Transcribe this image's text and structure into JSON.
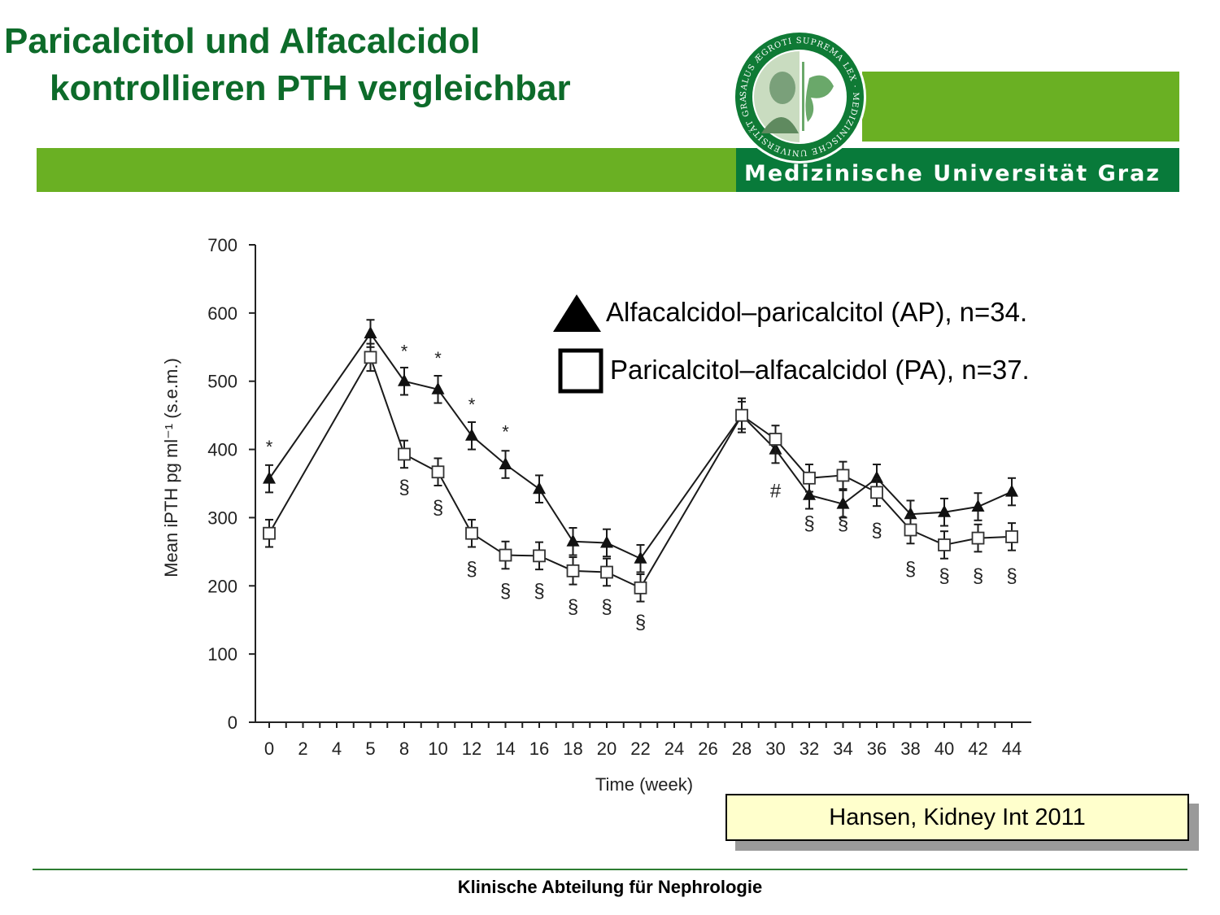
{
  "header": {
    "title_line1": "Paricalcitol und Alfacalcidol",
    "title_line2": "kontrollieren PTH vergleichbar",
    "university": "Medizinische Universität Graz",
    "seal_text": "SALUS ÆGROTI SUPREMA LEX · MEDIZINISCHE UNIVERSITÄT GRAZ",
    "colors": {
      "title": "#0d6b2a",
      "band_light": "#6ab023",
      "band_dark": "#087a3a"
    }
  },
  "legend": {
    "series_ap": "Alfacalcidol–paricalcitol (AP), n=34.",
    "series_pa": "Paricalcitol–alfacalcidol (PA), n=37."
  },
  "citation": "Hansen, Kidney Int 2011",
  "footer": "Klinische Abteilung für Nephrologie",
  "chart_data": {
    "type": "line",
    "xlabel": "Time (week)",
    "ylabel": "Mean iPTH pg ml⁻¹ (s.e.m.)",
    "ylim": [
      0,
      700
    ],
    "yticks": [
      0,
      100,
      200,
      300,
      400,
      500,
      600,
      700
    ],
    "categories": [
      "0",
      "2",
      "4",
      "5",
      "8",
      "10",
      "12",
      "14",
      "16",
      "18",
      "20",
      "22",
      "24",
      "26",
      "28",
      "30",
      "32",
      "34",
      "36",
      "38",
      "40",
      "42",
      "44"
    ],
    "series": [
      {
        "name": "Alfacalcidol–paricalcitol (AP), n=34.",
        "marker": "filled-triangle",
        "points": [
          {
            "x": "0",
            "y": 357,
            "err": 20
          },
          {
            "x": "5",
            "y": 570,
            "err": 20
          },
          {
            "x": "8",
            "y": 500,
            "err": 20
          },
          {
            "x": "10",
            "y": 488,
            "err": 20
          },
          {
            "x": "12",
            "y": 420,
            "err": 20
          },
          {
            "x": "14",
            "y": 378,
            "err": 20
          },
          {
            "x": "16",
            "y": 342,
            "err": 20
          },
          {
            "x": "18",
            "y": 265,
            "err": 20
          },
          {
            "x": "20",
            "y": 263,
            "err": 20
          },
          {
            "x": "22",
            "y": 240,
            "err": 20
          },
          {
            "x": "28",
            "y": 450,
            "err": 25
          },
          {
            "x": "30",
            "y": 400,
            "err": 20
          },
          {
            "x": "32",
            "y": 333,
            "err": 20
          },
          {
            "x": "34",
            "y": 320,
            "err": 20
          },
          {
            "x": "36",
            "y": 358,
            "err": 20
          },
          {
            "x": "38",
            "y": 305,
            "err": 20
          },
          {
            "x": "40",
            "y": 308,
            "err": 20
          },
          {
            "x": "42",
            "y": 316,
            "err": 20
          },
          {
            "x": "44",
            "y": 338,
            "err": 20
          }
        ]
      },
      {
        "name": "Paricalcitol–alfacalcidol (PA), n=37.",
        "marker": "open-square",
        "points": [
          {
            "x": "0",
            "y": 277,
            "err": 20
          },
          {
            "x": "5",
            "y": 535,
            "err": 20
          },
          {
            "x": "8",
            "y": 393,
            "err": 20
          },
          {
            "x": "10",
            "y": 367,
            "err": 20
          },
          {
            "x": "12",
            "y": 277,
            "err": 20
          },
          {
            "x": "14",
            "y": 245,
            "err": 20
          },
          {
            "x": "16",
            "y": 244,
            "err": 20
          },
          {
            "x": "18",
            "y": 222,
            "err": 20
          },
          {
            "x": "20",
            "y": 220,
            "err": 20
          },
          {
            "x": "22",
            "y": 197,
            "err": 20
          },
          {
            "x": "28",
            "y": 450,
            "err": 20
          },
          {
            "x": "30",
            "y": 415,
            "err": 20
          },
          {
            "x": "32",
            "y": 358,
            "err": 20
          },
          {
            "x": "34",
            "y": 362,
            "err": 20
          },
          {
            "x": "36",
            "y": 337,
            "err": 20
          },
          {
            "x": "38",
            "y": 282,
            "err": 20
          },
          {
            "x": "40",
            "y": 260,
            "err": 20
          },
          {
            "x": "42",
            "y": 270,
            "err": 20
          },
          {
            "x": "44",
            "y": 272,
            "err": 20
          }
        ]
      }
    ],
    "annotations": [
      {
        "x": "0",
        "y": 395,
        "text": "*"
      },
      {
        "x": "8",
        "y": 535,
        "text": "*"
      },
      {
        "x": "10",
        "y": 525,
        "text": "*"
      },
      {
        "x": "12",
        "y": 457,
        "text": "*"
      },
      {
        "x": "14",
        "y": 417,
        "text": "*"
      },
      {
        "x": "8",
        "y": 335,
        "text": "§"
      },
      {
        "x": "10",
        "y": 305,
        "text": "§"
      },
      {
        "x": "12",
        "y": 215,
        "text": "§"
      },
      {
        "x": "14",
        "y": 183,
        "text": "§"
      },
      {
        "x": "16",
        "y": 183,
        "text": "§"
      },
      {
        "x": "18",
        "y": 160,
        "text": "§"
      },
      {
        "x": "20",
        "y": 160,
        "text": "§"
      },
      {
        "x": "22",
        "y": 137,
        "text": "§"
      },
      {
        "x": "30",
        "y": 330,
        "text": "#"
      },
      {
        "x": "32",
        "y": 282,
        "text": "§"
      },
      {
        "x": "34",
        "y": 282,
        "text": "§"
      },
      {
        "x": "36",
        "y": 272,
        "text": "§"
      },
      {
        "x": "38",
        "y": 215,
        "text": "§"
      },
      {
        "x": "40",
        "y": 205,
        "text": "§"
      },
      {
        "x": "42",
        "y": 205,
        "text": "§"
      },
      {
        "x": "44",
        "y": 205,
        "text": "§"
      }
    ]
  }
}
